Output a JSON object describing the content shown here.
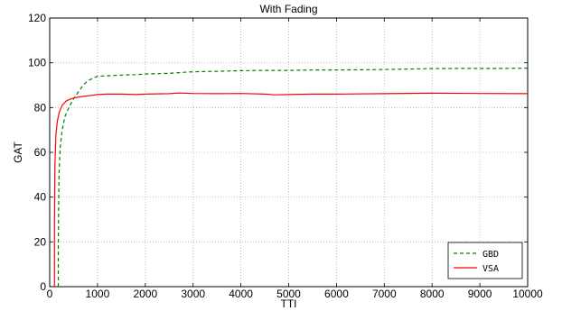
{
  "chart_data": {
    "type": "line",
    "title": "With Fading",
    "xlabel": "TTI",
    "ylabel": "GAT",
    "xlim": [
      0,
      10000
    ],
    "ylim": [
      0,
      120
    ],
    "xticks": [
      0,
      1000,
      2000,
      3000,
      4000,
      5000,
      6000,
      7000,
      8000,
      9000,
      10000
    ],
    "yticks": [
      0,
      20,
      40,
      60,
      80,
      100,
      120
    ],
    "grid": true,
    "legend_position": "bottom-right",
    "series": [
      {
        "name": "GBD",
        "color": "#008000",
        "line_style": "dashed",
        "x": [
          180,
          180,
          195,
          220,
          260,
          320,
          400,
          500,
          600,
          700,
          800,
          900,
          1000,
          1200,
          1500,
          1800,
          2000,
          2500,
          3000,
          3500,
          4000,
          4500,
          5000,
          5500,
          6000,
          6500,
          7000,
          7500,
          8000,
          8500,
          9000,
          9500,
          10000
        ],
        "y": [
          0,
          20,
          50,
          62,
          70,
          76,
          80,
          84,
          87,
          90,
          92,
          93,
          94,
          94.2,
          94.5,
          94.7,
          95,
          95.3,
          96,
          96.2,
          96.5,
          96.6,
          96.6,
          96.8,
          96.8,
          96.9,
          97,
          97.2,
          97.4,
          97.5,
          97.5,
          97.5,
          97.6
        ]
      },
      {
        "name": "VSA",
        "color": "#ff0000",
        "line_style": "solid",
        "x": [
          100,
          100,
          110,
          130,
          160,
          200,
          260,
          350,
          450,
          550,
          700,
          900,
          1000,
          1200,
          1500,
          1800,
          2000,
          2500,
          2700,
          3000,
          3500,
          4000,
          4500,
          4700,
          5000,
          5500,
          6000,
          7000,
          8000,
          9000,
          10000
        ],
        "y": [
          0,
          30,
          55,
          68,
          74,
          78,
          81,
          83,
          84,
          84.5,
          85,
          85.5,
          85.8,
          86,
          86,
          85.8,
          86,
          86.2,
          86.5,
          86.3,
          86.2,
          86.3,
          86,
          85.7,
          85.8,
          86,
          86,
          86.2,
          86.4,
          86.3,
          86.2
        ]
      }
    ]
  }
}
